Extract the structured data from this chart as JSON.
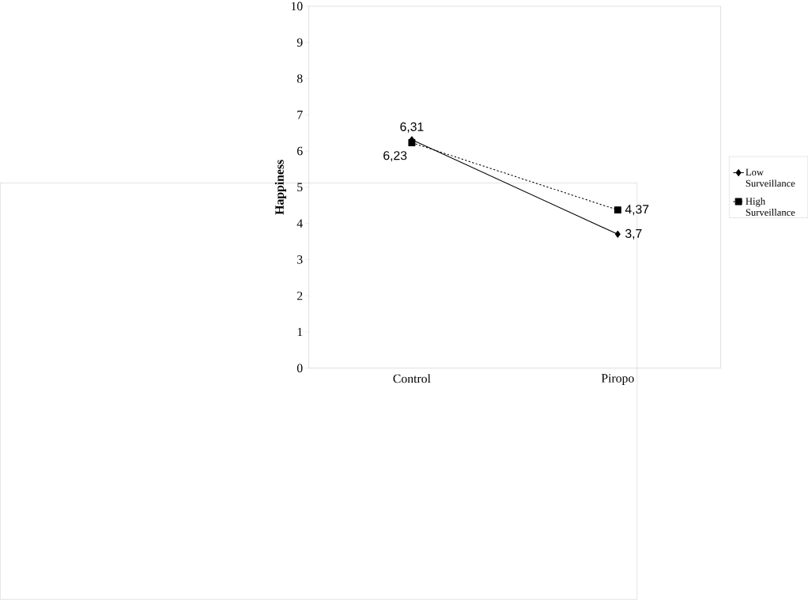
{
  "chart_data": {
    "type": "line",
    "ylabel": "Happiness",
    "categories": [
      "Control",
      "Piropo"
    ],
    "series": [
      {
        "name": "Low Surveillance",
        "color": "#000000",
        "values": [
          6.31,
          3.7
        ],
        "value_labels": [
          "6,31",
          "3,7"
        ],
        "marker": "diamond",
        "line_style": "solid"
      },
      {
        "name": "High Surveillance",
        "color": "#000000",
        "values": [
          6.23,
          4.37
        ],
        "value_labels": [
          "6,23",
          "4,37"
        ],
        "marker": "square",
        "line_style": "dashed"
      }
    ],
    "ylim": [
      0,
      10
    ],
    "yticks": [
      0,
      1,
      2,
      3,
      4,
      5,
      6,
      7,
      8,
      9,
      10
    ],
    "grid": false,
    "legend": "right"
  }
}
